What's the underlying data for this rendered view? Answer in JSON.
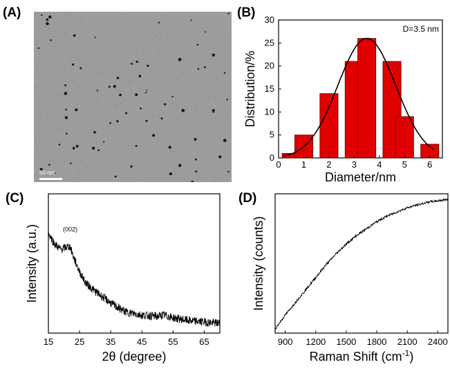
{
  "panels": {
    "a": {
      "label": "(A)",
      "scale_bar": "50 nm"
    },
    "b": {
      "label": "(B)"
    },
    "c": {
      "label": "(C)"
    },
    "d": {
      "label": "(D)"
    }
  },
  "chart_data": [
    {
      "type": "bar",
      "panel": "B",
      "x": [
        0.5,
        1,
        2,
        3,
        3.5,
        4.5,
        5,
        6
      ],
      "values": [
        1,
        5,
        14,
        21,
        26,
        21,
        9,
        3
      ],
      "fit": "gaussian",
      "fit_center": 3.5,
      "annotation": "D=3.5 nm",
      "xlabel": "Diameter/nm",
      "ylabel": "Distribution/%",
      "xlim": [
        0,
        6.5
      ],
      "ylim": [
        0,
        30
      ],
      "xticks": [
        0,
        1,
        2,
        3,
        4,
        5,
        6
      ],
      "yticks": [
        0,
        5,
        10,
        15,
        20,
        25,
        30
      ],
      "bar_color": "#e00000",
      "fit_color": "#000000"
    },
    {
      "type": "line",
      "panel": "C",
      "x": [
        15,
        17,
        19,
        21,
        22,
        23,
        25,
        27,
        30,
        33,
        36,
        40,
        45,
        50,
        52,
        55,
        60,
        65,
        70
      ],
      "y": [
        72,
        64,
        60,
        62,
        62,
        55,
        44,
        36,
        30,
        25,
        20,
        15,
        13,
        12,
        13,
        11,
        9,
        8,
        7
      ],
      "annotation": "(002)",
      "xlabel": "2θ (degree)",
      "ylabel": "Intensity (a.u.)",
      "xlim": [
        15,
        70
      ],
      "ylim": [
        0,
        100
      ],
      "xticks": [
        15,
        25,
        35,
        45,
        55,
        65
      ],
      "noise": true
    },
    {
      "type": "line",
      "panel": "D",
      "x": [
        800,
        900,
        1000,
        1100,
        1200,
        1300,
        1400,
        1500,
        1600,
        1700,
        1800,
        1900,
        2000,
        2100,
        2200,
        2300,
        2400,
        2500
      ],
      "y": [
        3,
        13,
        22,
        31,
        40,
        49,
        57,
        64,
        70,
        75,
        80,
        84,
        87,
        90,
        92,
        94,
        95,
        96
      ],
      "xlabel": "Raman Shift (cm-1)",
      "ylabel": "Intensity (counts)",
      "xlim": [
        800,
        2500
      ],
      "ylim": [
        0,
        100
      ],
      "xticks": [
        900,
        1200,
        1500,
        1800,
        2100,
        2400
      ],
      "noise": true
    }
  ]
}
